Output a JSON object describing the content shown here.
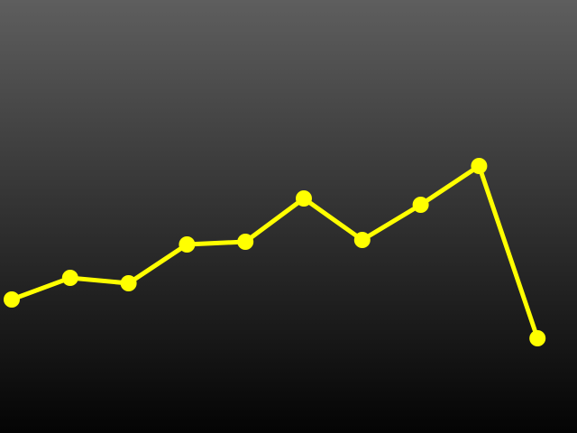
{
  "chart_data": {
    "type": "line",
    "x": [
      1,
      2,
      3,
      4,
      5,
      6,
      7,
      8,
      9,
      10
    ],
    "values": [
      332,
      308,
      314,
      271,
      268,
      220,
      266,
      227,
      184,
      375
    ],
    "ylim": [
      480,
      0
    ],
    "grid": false,
    "legend": "none"
  },
  "colors": {
    "line": "#ffff00",
    "background_top": "#5e5e5e",
    "background_bottom": "#040404"
  }
}
